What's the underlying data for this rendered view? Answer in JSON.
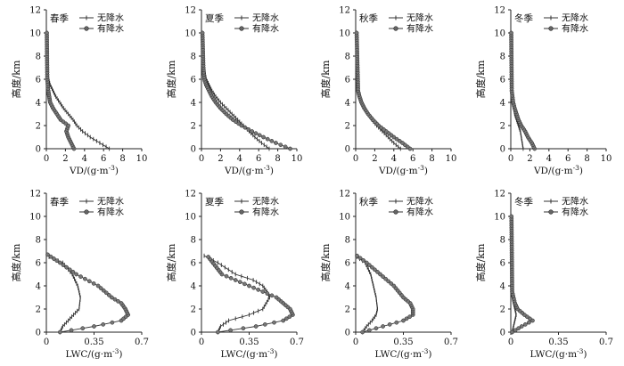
{
  "chart_data": [
    {
      "type": "line",
      "season": "春季",
      "xlabel": "VD/(g·m⁻³)",
      "ylabel": "高度/km",
      "xlim": [
        0,
        10
      ],
      "ylim": [
        0,
        12
      ],
      "xticks": [
        "0",
        "2",
        "4",
        "6",
        "8",
        "10"
      ],
      "yticks": [
        "0",
        "2",
        "4",
        "6",
        "8",
        "10",
        "12"
      ],
      "legend": [
        "无降水",
        "有降水"
      ],
      "series": [
        {
          "name": "无降水",
          "x": [
            6.6,
            5.6,
            4.6,
            3.8,
            3.2,
            2.8,
            2.3,
            1.8,
            1.4,
            1.0,
            0.7,
            0.4,
            0.25,
            0.15,
            0.1
          ],
          "y": [
            0,
            0.5,
            1.0,
            1.5,
            2.0,
            2.5,
            3.0,
            3.5,
            4.0,
            4.5,
            5.0,
            5.5,
            6.0,
            7.0,
            10.0
          ]
        },
        {
          "name": "有降水",
          "x": [
            2.9,
            2.6,
            2.3,
            2.1,
            2.3,
            1.5,
            1.1,
            0.7,
            0.4,
            0.3,
            0.2,
            0.1,
            0.05
          ],
          "y": [
            0,
            0.5,
            1.0,
            1.5,
            2.0,
            2.5,
            3.0,
            3.5,
            4.0,
            4.5,
            5.0,
            6.0,
            10.0
          ]
        }
      ]
    },
    {
      "type": "line",
      "season": "夏季",
      "xlabel": "VD/(g·m⁻³)",
      "ylabel": "高度/km",
      "xlim": [
        0,
        10
      ],
      "ylim": [
        0,
        12
      ],
      "xticks": [
        "0",
        "2",
        "4",
        "6",
        "8",
        "10"
      ],
      "yticks": [
        "0",
        "2",
        "4",
        "6",
        "8",
        "10",
        "12"
      ],
      "legend": [
        "无降水",
        "有降水"
      ],
      "series": [
        {
          "name": "无降水",
          "x": [
            7.1,
            6.3,
            5.6,
            5.0,
            4.4,
            3.8,
            3.2,
            2.6,
            2.0,
            1.5,
            1.1,
            0.8,
            0.5,
            0.3,
            0.2,
            0.1
          ],
          "y": [
            0,
            0.5,
            1.0,
            1.5,
            2.0,
            2.5,
            3.0,
            3.5,
            4.0,
            4.5,
            5.0,
            5.5,
            6.0,
            7.0,
            8.0,
            10.0
          ]
        },
        {
          "name": "有降水",
          "x": [
            9.3,
            7.8,
            6.5,
            5.3,
            4.2,
            3.3,
            2.6,
            2.0,
            1.5,
            1.1,
            0.8,
            0.5,
            0.3,
            0.2,
            0.1
          ],
          "y": [
            0,
            0.5,
            1.0,
            1.5,
            2.0,
            2.5,
            3.0,
            3.5,
            4.0,
            4.5,
            5.0,
            5.5,
            6.0,
            7.0,
            10.0
          ]
        }
      ]
    },
    {
      "type": "line",
      "season": "秋季",
      "xlabel": "VD/(g·m⁻³)",
      "ylabel": "高度/km",
      "xlim": [
        0,
        10
      ],
      "ylim": [
        0,
        12
      ],
      "xticks": [
        "0",
        "2",
        "4",
        "6",
        "8",
        "10"
      ],
      "yticks": [
        "0",
        "2",
        "4",
        "6",
        "8",
        "10",
        "12"
      ],
      "legend": [
        "无降水",
        "有降水"
      ],
      "series": [
        {
          "name": "无降水",
          "x": [
            4.7,
            4.0,
            3.4,
            2.8,
            2.2,
            1.7,
            1.3,
            1.0,
            0.7,
            0.5,
            0.3,
            0.2,
            0.1
          ],
          "y": [
            0,
            0.5,
            1.0,
            1.5,
            2.0,
            2.5,
            3.0,
            3.5,
            4.0,
            4.5,
            5.0,
            6.0,
            10.0
          ]
        },
        {
          "name": "有降水",
          "x": [
            5.7,
            4.9,
            4.0,
            3.2,
            2.4,
            1.8,
            1.3,
            0.9,
            0.6,
            0.4,
            0.25,
            0.1
          ],
          "y": [
            0,
            0.5,
            1.0,
            1.5,
            2.0,
            2.5,
            3.0,
            3.5,
            4.0,
            4.5,
            5.0,
            10.0
          ]
        }
      ]
    },
    {
      "type": "line",
      "season": "冬季",
      "xlabel": "VD/(g·m⁻³)",
      "ylabel": "高度/km",
      "xlim": [
        0,
        10
      ],
      "ylim": [
        0,
        12
      ],
      "xticks": [
        "0",
        "2",
        "4",
        "6",
        "8",
        "10"
      ],
      "yticks": [
        "0",
        "2",
        "4",
        "6",
        "8",
        "10",
        "12"
      ],
      "legend": [
        "无降水",
        "有降水"
      ],
      "series": [
        {
          "name": "无降水",
          "x": [
            1.3,
            1.2,
            1.1,
            1.0,
            0.8,
            0.6,
            0.4,
            0.3,
            0.2,
            0.1,
            0.05
          ],
          "y": [
            0,
            0.5,
            1.0,
            1.5,
            2.0,
            2.5,
            3.0,
            3.5,
            4.0,
            5.0,
            10.0
          ]
        },
        {
          "name": "有降水",
          "x": [
            2.5,
            2.2,
            1.8,
            1.5,
            1.1,
            0.8,
            0.6,
            0.4,
            0.25,
            0.1,
            0.05
          ],
          "y": [
            0,
            0.5,
            1.0,
            1.5,
            2.0,
            2.5,
            3.0,
            3.5,
            4.0,
            5.0,
            10.0
          ]
        }
      ]
    },
    {
      "type": "line",
      "season": "春季",
      "xlabel": "LWC/(g·m⁻³)",
      "ylabel": "高度/km",
      "xlim": [
        0,
        0.7
      ],
      "ylim": [
        0,
        12
      ],
      "xticks": [
        "0",
        "0.35",
        "0.7"
      ],
      "yticks": [
        "0",
        "2",
        "4",
        "6",
        "8",
        "10",
        "12"
      ],
      "legend": [
        "无降水",
        "有降水"
      ],
      "series": [
        {
          "name": "无降水",
          "x": [
            0.1,
            0.12,
            0.16,
            0.2,
            0.24,
            0.25,
            0.23,
            0.19,
            0.12,
            0.02
          ],
          "y": [
            0,
            0.5,
            1.0,
            1.5,
            2.0,
            3.0,
            4.0,
            5.0,
            6.0,
            6.5
          ]
        },
        {
          "name": "有降水",
          "x": [
            0.1,
            0.35,
            0.55,
            0.6,
            0.58,
            0.55,
            0.48,
            0.38,
            0.22,
            0.1,
            0.01
          ],
          "y": [
            0,
            0.5,
            1.0,
            1.5,
            2.0,
            2.5,
            3.0,
            4.0,
            5.0,
            6.0,
            6.7
          ]
        }
      ]
    },
    {
      "type": "line",
      "season": "夏季",
      "xlabel": "LWC/(g·m⁻³)",
      "ylabel": "高度/km",
      "xlim": [
        0,
        0.7
      ],
      "ylim": [
        0,
        12
      ],
      "xticks": [
        "0",
        "0.35",
        "0.7"
      ],
      "yticks": [
        "0",
        "2",
        "4",
        "6",
        "8",
        "10",
        "12"
      ],
      "legend": [
        "无降水",
        "有降水"
      ],
      "series": [
        {
          "name": "无降水",
          "x": [
            0.12,
            0.14,
            0.2,
            0.35,
            0.45,
            0.5,
            0.48,
            0.45,
            0.38,
            0.25,
            0.12,
            0.02
          ],
          "y": [
            0,
            0.5,
            1.0,
            1.5,
            2.0,
            3.0,
            3.5,
            4.0,
            4.5,
            5.0,
            6.0,
            6.6
          ]
        },
        {
          "name": "有降水",
          "x": [
            0.12,
            0.4,
            0.6,
            0.67,
            0.65,
            0.6,
            0.55,
            0.45,
            0.35,
            0.25,
            0.15,
            0.05
          ],
          "y": [
            0,
            0.5,
            1.0,
            1.5,
            2.0,
            2.5,
            3.0,
            3.5,
            4.0,
            4.5,
            5.0,
            6.5
          ]
        }
      ]
    },
    {
      "type": "line",
      "season": "秋季",
      "xlabel": "LWC/(g·m⁻³)",
      "ylabel": "高度/km",
      "xlim": [
        0,
        0.7
      ],
      "ylim": [
        0,
        12
      ],
      "xticks": [
        "0",
        "0.35",
        "0.7"
      ],
      "yticks": [
        "0",
        "2",
        "4",
        "6",
        "8",
        "10",
        "12"
      ],
      "legend": [
        "无降水",
        "有降水"
      ],
      "series": [
        {
          "name": "无降水",
          "x": [
            0.05,
            0.08,
            0.12,
            0.15,
            0.16,
            0.15,
            0.13,
            0.11,
            0.07,
            0.01
          ],
          "y": [
            0,
            0.5,
            1.0,
            1.5,
            2.0,
            3.0,
            4.0,
            5.0,
            6.0,
            6.5
          ]
        },
        {
          "name": "有降水",
          "x": [
            0.05,
            0.2,
            0.35,
            0.42,
            0.42,
            0.4,
            0.35,
            0.28,
            0.18,
            0.08,
            0.01
          ],
          "y": [
            0,
            0.5,
            1.0,
            1.5,
            2.0,
            2.5,
            3.0,
            4.0,
            5.0,
            6.0,
            6.6
          ]
        }
      ]
    },
    {
      "type": "line",
      "season": "冬季",
      "xlabel": "LWC/(g·m⁻³)",
      "ylabel": "高度/km",
      "xlim": [
        0,
        0.7
      ],
      "ylim": [
        0,
        12
      ],
      "xticks": [
        "0",
        "0.35",
        "0.7"
      ],
      "yticks": [
        "0",
        "2",
        "4",
        "6",
        "8",
        "10",
        "12"
      ],
      "legend": [
        "无降水",
        "有降水"
      ],
      "series": [
        {
          "name": "无降水",
          "x": [
            0.01,
            0.02,
            0.03,
            0.04,
            0.03,
            0.02,
            0.01,
            0.005,
            0.002
          ],
          "y": [
            0,
            0.5,
            1.0,
            1.5,
            2.0,
            2.5,
            3.0,
            4.0,
            10.0
          ]
        },
        {
          "name": "有降水",
          "x": [
            0.01,
            0.08,
            0.16,
            0.1,
            0.05,
            0.03,
            0.01,
            0.005
          ],
          "y": [
            0,
            0.5,
            1.0,
            1.5,
            2.0,
            2.5,
            3.5,
            10.0
          ]
        }
      ]
    }
  ]
}
